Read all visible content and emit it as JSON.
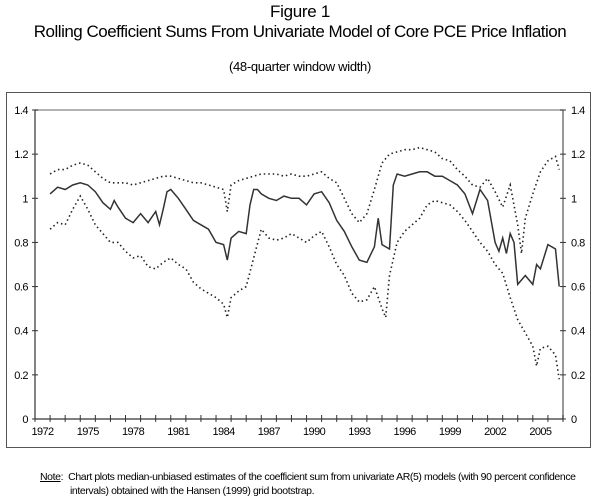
{
  "header": {
    "figure_label": "Figure 1",
    "title": "Rolling Coefficient Sums From Univariate Model of Core PCE Price Inflation",
    "subtitle": "(48-quarter window width)"
  },
  "note": {
    "label": "Note",
    "line1": "Chart plots median-unbiased estimates of the coefficient sum from univariate AR(5) models (with 90 percent confidence",
    "line2": "intervals) obtained with the Hansen (1999) grid bootstrap."
  },
  "chart_data": {
    "type": "line",
    "title": "Rolling Coefficient Sums From Univariate Model of Core PCE Price Inflation",
    "subtitle": "(48-quarter window width)",
    "xlabel": "",
    "ylabel": "",
    "xlim": [
      1972,
      2007
    ],
    "ylim": [
      0,
      1.4
    ],
    "x_ticks": [
      "1972",
      "1975",
      "1978",
      "1981",
      "1984",
      "1987",
      "1990",
      "1993",
      "1996",
      "1999",
      "2002",
      "2005"
    ],
    "y_ticks_left": [
      "0",
      "0.2",
      "0.4",
      "0.6",
      "0.8",
      "1",
      "1.2",
      "1.4"
    ],
    "y_ticks_right": [
      "0",
      "0.2",
      "0.4",
      "0.6",
      "0.8",
      "1",
      "1.2",
      "1.4"
    ],
    "grid": false,
    "legend": "none",
    "series": [
      {
        "name": "Median-unbiased estimate",
        "style": "solid",
        "x": [
          1973.0,
          1973.5,
          1974.0,
          1974.5,
          1975.0,
          1975.5,
          1976.0,
          1976.5,
          1977.0,
          1977.25,
          1977.5,
          1978.0,
          1978.5,
          1979.0,
          1979.5,
          1980.0,
          1980.25,
          1980.5,
          1980.75,
          1981.0,
          1981.5,
          1982.0,
          1982.5,
          1983.0,
          1983.5,
          1984.0,
          1984.5,
          1984.75,
          1985.0,
          1985.5,
          1986.0,
          1986.25,
          1986.5,
          1986.75,
          1987.0,
          1987.5,
          1988.0,
          1988.5,
          1989.0,
          1989.5,
          1990.0,
          1990.5,
          1991.0,
          1991.5,
          1992.0,
          1992.5,
          1993.0,
          1993.5,
          1994.0,
          1994.5,
          1994.75,
          1995.0,
          1995.5,
          1995.75,
          1996.0,
          1996.5,
          1997.0,
          1997.5,
          1998.0,
          1998.5,
          1999.0,
          1999.5,
          2000.0,
          2000.5,
          2001.0,
          2001.5,
          2002.0,
          2002.5,
          2002.75,
          2003.0,
          2003.25,
          2003.5,
          2003.75,
          2004.0,
          2004.5,
          2005.0,
          2005.25,
          2005.5,
          2006.0,
          2006.5,
          2006.75
        ],
        "values": [
          1.02,
          1.05,
          1.04,
          1.06,
          1.07,
          1.06,
          1.03,
          0.98,
          0.95,
          0.99,
          0.96,
          0.91,
          0.89,
          0.93,
          0.89,
          0.94,
          0.88,
          0.95,
          1.03,
          1.04,
          1.0,
          0.95,
          0.9,
          0.88,
          0.86,
          0.8,
          0.79,
          0.72,
          0.82,
          0.85,
          0.84,
          0.97,
          1.04,
          1.04,
          1.02,
          1.0,
          0.99,
          1.01,
          1.0,
          1.0,
          0.97,
          1.02,
          1.03,
          0.98,
          0.9,
          0.85,
          0.78,
          0.72,
          0.71,
          0.78,
          0.91,
          0.79,
          0.77,
          1.06,
          1.11,
          1.1,
          1.11,
          1.12,
          1.12,
          1.1,
          1.1,
          1.08,
          1.06,
          1.02,
          0.93,
          1.04,
          0.99,
          0.8,
          0.76,
          0.82,
          0.75,
          0.84,
          0.8,
          0.61,
          0.65,
          0.61,
          0.7,
          0.68,
          0.79,
          0.77,
          0.6
        ]
      },
      {
        "name": "Upper 90% confidence bound",
        "style": "dotted",
        "x": [
          1973.0,
          1973.5,
          1974.0,
          1974.5,
          1975.0,
          1975.5,
          1976.0,
          1976.5,
          1977.0,
          1977.5,
          1978.0,
          1978.5,
          1979.0,
          1979.5,
          1980.0,
          1980.5,
          1981.0,
          1981.5,
          1982.0,
          1982.5,
          1983.0,
          1983.5,
          1984.0,
          1984.5,
          1984.75,
          1985.0,
          1985.5,
          1986.0,
          1986.5,
          1987.0,
          1987.5,
          1988.0,
          1988.5,
          1989.0,
          1989.5,
          1990.0,
          1990.5,
          1991.0,
          1991.5,
          1992.0,
          1992.5,
          1993.0,
          1993.5,
          1994.0,
          1994.5,
          1995.0,
          1995.5,
          1996.0,
          1996.5,
          1997.0,
          1997.5,
          1998.0,
          1998.5,
          1999.0,
          1999.5,
          2000.0,
          2000.5,
          2001.0,
          2001.5,
          2002.0,
          2002.5,
          2003.0,
          2003.5,
          2004.0,
          2004.25,
          2004.5,
          2005.0,
          2005.5,
          2006.0,
          2006.5,
          2006.75
        ],
        "values": [
          1.11,
          1.13,
          1.13,
          1.15,
          1.16,
          1.15,
          1.12,
          1.09,
          1.07,
          1.07,
          1.07,
          1.06,
          1.07,
          1.08,
          1.09,
          1.1,
          1.1,
          1.09,
          1.08,
          1.07,
          1.07,
          1.06,
          1.05,
          1.04,
          0.94,
          1.06,
          1.08,
          1.09,
          1.1,
          1.11,
          1.11,
          1.11,
          1.1,
          1.11,
          1.1,
          1.1,
          1.11,
          1.12,
          1.09,
          1.07,
          1.0,
          0.93,
          0.89,
          0.93,
          1.04,
          1.16,
          1.2,
          1.21,
          1.22,
          1.22,
          1.23,
          1.22,
          1.21,
          1.18,
          1.17,
          1.13,
          1.1,
          1.06,
          1.05,
          1.09,
          1.03,
          0.96,
          1.06,
          0.88,
          0.75,
          0.91,
          1.02,
          1.12,
          1.17,
          1.19,
          1.13
        ]
      },
      {
        "name": "Lower 90% confidence bound",
        "style": "dotted",
        "x": [
          1973.0,
          1973.5,
          1974.0,
          1974.5,
          1975.0,
          1975.5,
          1976.0,
          1976.5,
          1977.0,
          1977.5,
          1978.0,
          1978.5,
          1979.0,
          1979.5,
          1980.0,
          1980.5,
          1981.0,
          1981.5,
          1982.0,
          1982.5,
          1983.0,
          1983.5,
          1984.0,
          1984.5,
          1984.75,
          1985.0,
          1985.5,
          1986.0,
          1986.5,
          1987.0,
          1987.5,
          1988.0,
          1988.5,
          1989.0,
          1989.5,
          1990.0,
          1990.5,
          1991.0,
          1991.5,
          1992.0,
          1992.5,
          1993.0,
          1993.5,
          1994.0,
          1994.5,
          1995.0,
          1995.25,
          1995.5,
          1996.0,
          1996.5,
          1997.0,
          1997.5,
          1998.0,
          1998.5,
          1999.0,
          1999.5,
          2000.0,
          2000.5,
          2001.0,
          2001.5,
          2002.0,
          2002.5,
          2003.0,
          2003.5,
          2004.0,
          2004.5,
          2005.0,
          2005.25,
          2005.5,
          2006.0,
          2006.5,
          2006.75
        ],
        "values": [
          0.86,
          0.89,
          0.88,
          0.95,
          1.01,
          0.95,
          0.88,
          0.84,
          0.8,
          0.8,
          0.76,
          0.73,
          0.74,
          0.69,
          0.68,
          0.71,
          0.73,
          0.7,
          0.68,
          0.62,
          0.59,
          0.57,
          0.55,
          0.52,
          0.46,
          0.55,
          0.58,
          0.6,
          0.73,
          0.86,
          0.82,
          0.81,
          0.82,
          0.84,
          0.82,
          0.8,
          0.83,
          0.85,
          0.78,
          0.7,
          0.65,
          0.57,
          0.53,
          0.54,
          0.6,
          0.5,
          0.46,
          0.65,
          0.8,
          0.85,
          0.88,
          0.91,
          0.97,
          0.99,
          0.98,
          0.97,
          0.94,
          0.9,
          0.85,
          0.8,
          0.76,
          0.7,
          0.66,
          0.55,
          0.45,
          0.39,
          0.33,
          0.24,
          0.32,
          0.33,
          0.29,
          0.18
        ]
      }
    ]
  }
}
